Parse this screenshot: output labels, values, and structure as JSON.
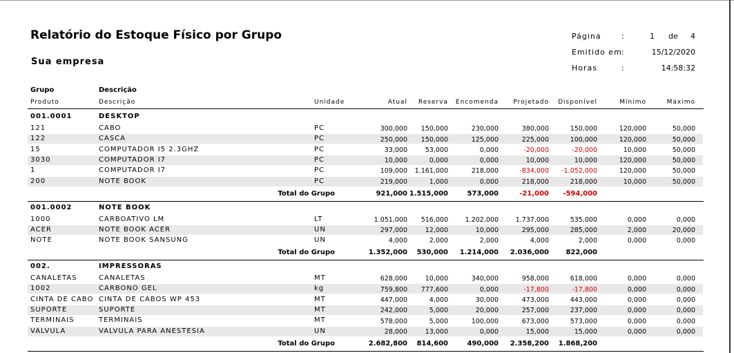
{
  "header": {
    "title": "Relatório do Estoque Físico por Grupo",
    "company": "Sua empresa",
    "page_label": "Página",
    "page_colon": ":",
    "page": "1",
    "of": "de",
    "total_pages": "4",
    "issued_label": "Emitido em",
    "issued_colon": ":",
    "issued": "15/12/2020",
    "hours_label": "Horas",
    "hours_colon": ":",
    "hours": "14:58:32"
  },
  "columns": {
    "group": [
      "Grupo",
      "Descrição"
    ],
    "product": [
      "Produto",
      "Descrição",
      "Unidade",
      "Atual",
      "Reserva",
      "Encomenda",
      "Projetado",
      "Disponível",
      "Mínimo",
      "Máximo"
    ]
  },
  "groups": [
    {
      "code": "001.0001",
      "name": "DESKTOP",
      "rows": [
        [
          "121",
          "CABO",
          "PC",
          "300,000",
          "150,000",
          "230,000",
          "380,000",
          "150,000",
          "120,000",
          "50,000"
        ],
        [
          "122",
          "CASCA",
          "PC",
          "250,000",
          "150,000",
          "125,000",
          "225,000",
          "100,000",
          "120,000",
          "50,000"
        ],
        [
          "15",
          "COMPUTADOR I5 2.3GHZ",
          "PC",
          "33,000",
          "53,000",
          "0,000",
          "-20,000",
          "-20,000",
          "10,000",
          "50,000"
        ],
        [
          "3030",
          "COMPUTADOR I7",
          "PC",
          "10,000",
          "0,000",
          "0,000",
          "10,000",
          "10,000",
          "120,000",
          "50,000"
        ],
        [
          "1",
          "COMPUTADOR I7",
          "PC",
          "109,000",
          "1.161,000",
          "218,000",
          "-834,000",
          "-1.052,000",
          "120,000",
          "50,000"
        ],
        [
          "200",
          "NOTE BOOK",
          "PC",
          "219,000",
          "1,000",
          "0,000",
          "218,000",
          "218,000",
          "10,000",
          "50,000"
        ]
      ],
      "total_label": "Total do Grupo",
      "totals": [
        "921,000",
        "1.515,000",
        "573,000",
        "-21,000",
        "-594,000"
      ]
    },
    {
      "code": "001.0002",
      "name": "NOTE BOOK",
      "rows": [
        [
          "1000",
          "CARBOATIVO LM",
          "LT",
          "1.051,000",
          "516,000",
          "1.202,000",
          "1.737,000",
          "535,000",
          "0,000",
          "0,000"
        ],
        [
          "ACER",
          "NOTE BOOK ACER",
          "UN",
          "297,000",
          "12,000",
          "10,000",
          "295,000",
          "285,000",
          "2,000",
          "20,000"
        ],
        [
          "NOTE",
          "NOTE BOOK SANSUNG",
          "UN",
          "4,000",
          "2,000",
          "2,000",
          "4,000",
          "2,000",
          "0,000",
          "0,000"
        ]
      ],
      "total_label": "Total do Grupo",
      "totals": [
        "1.352,000",
        "530,000",
        "1.214,000",
        "2.036,000",
        "822,000"
      ]
    },
    {
      "code": "002.",
      "name": "IMPRESSORAS",
      "rows": [
        [
          "CANALETAS",
          "CANALETAS",
          "MT",
          "628,000",
          "10,000",
          "340,000",
          "958,000",
          "618,000",
          "0,000",
          "0,000"
        ],
        [
          "1002",
          "CARBONO GEL",
          "kg",
          "759,800",
          "777,600",
          "0,000",
          "-17,800",
          "-17,800",
          "0,000",
          "0,000"
        ],
        [
          "CINTA DE CABO",
          "CINTA DE CABOS WP 453",
          "MT",
          "447,000",
          "4,000",
          "30,000",
          "473,000",
          "443,000",
          "0,000",
          "0,000"
        ],
        [
          "SUPORTE",
          "SUPORTE",
          "MT",
          "242,000",
          "5,000",
          "20,000",
          "257,000",
          "237,000",
          "0,000",
          "0,000"
        ],
        [
          "TERMINAIS",
          "TERMINAIS",
          "MT",
          "578,000",
          "5,000",
          "100,000",
          "673,000",
          "573,000",
          "0,000",
          "0,000"
        ],
        [
          "VALVULA",
          "VALVULA PARA ANESTESIA",
          "UN",
          "28,000",
          "13,000",
          "0,000",
          "15,000",
          "15,000",
          "0,000",
          "0,000"
        ]
      ],
      "total_label": "Total do Grupo",
      "totals": [
        "2.682,800",
        "814,600",
        "490,000",
        "2.358,200",
        "1.868,200"
      ]
    }
  ]
}
